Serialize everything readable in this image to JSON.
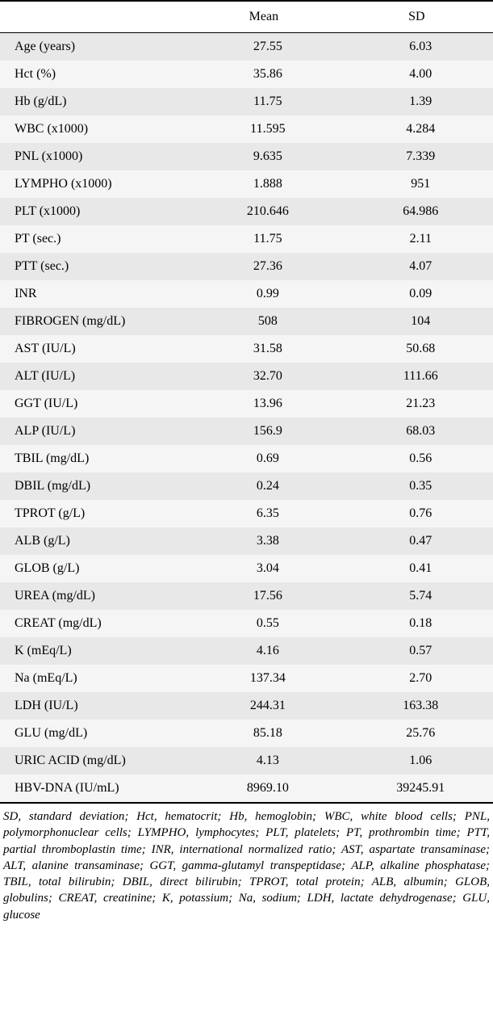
{
  "table": {
    "columns": [
      "",
      "Mean",
      "SD"
    ],
    "rows": [
      {
        "label": "Age (years)",
        "mean": "27.55",
        "sd": "6.03"
      },
      {
        "label": "Hct (%)",
        "mean": "35.86",
        "sd": "4.00"
      },
      {
        "label": "Hb (g/dL)",
        "mean": "11.75",
        "sd": "1.39"
      },
      {
        "label": "WBC (x1000)",
        "mean": "11.595",
        "sd": "4.284"
      },
      {
        "label": "PNL (x1000)",
        "mean": "9.635",
        "sd": "7.339"
      },
      {
        "label": "LYMPHO (x1000)",
        "mean": "1.888",
        "sd": "951"
      },
      {
        "label": "PLT (x1000)",
        "mean": "210.646",
        "sd": "64.986"
      },
      {
        "label": "PT (sec.)",
        "mean": "11.75",
        "sd": "2.11"
      },
      {
        "label": "PTT (sec.)",
        "mean": "27.36",
        "sd": "4.07"
      },
      {
        "label": "INR",
        "mean": "0.99",
        "sd": "0.09"
      },
      {
        "label": "FIBROGEN (mg/dL)",
        "mean": "508",
        "sd": "104"
      },
      {
        "label": "AST (IU/L)",
        "mean": "31.58",
        "sd": "50.68"
      },
      {
        "label": "ALT (IU/L)",
        "mean": "32.70",
        "sd": "111.66"
      },
      {
        "label": "GGT (IU/L)",
        "mean": "13.96",
        "sd": "21.23"
      },
      {
        "label": "ALP (IU/L)",
        "mean": "156.9",
        "sd": "68.03"
      },
      {
        "label": "TBIL (mg/dL)",
        "mean": "0.69",
        "sd": "0.56"
      },
      {
        "label": "DBIL (mg/dL)",
        "mean": "0.24",
        "sd": "0.35"
      },
      {
        "label": "TPROT (g/L)",
        "mean": "6.35",
        "sd": "0.76"
      },
      {
        "label": "ALB (g/L)",
        "mean": "3.38",
        "sd": "0.47"
      },
      {
        "label": "GLOB (g/L)",
        "mean": "3.04",
        "sd": "0.41"
      },
      {
        "label": "UREA (mg/dL)",
        "mean": "17.56",
        "sd": "5.74"
      },
      {
        "label": "CREAT (mg/dL)",
        "mean": "0.55",
        "sd": "0.18"
      },
      {
        "label": "K (mEq/L)",
        "mean": "4.16",
        "sd": "0.57"
      },
      {
        "label": "Na (mEq/L)",
        "mean": "137.34",
        "sd": "2.70"
      },
      {
        "label": "LDH (IU/L)",
        "mean": "244.31",
        "sd": "163.38"
      },
      {
        "label": "GLU (mg/dL)",
        "mean": "85.18",
        "sd": "25.76"
      },
      {
        "label": "URIC ACID (mg/dL)",
        "mean": "4.13",
        "sd": "1.06"
      },
      {
        "label": "HBV-DNA (IU/mL)",
        "mean": "8969.10",
        "sd": "39245.91"
      }
    ],
    "row_bg_even": "#e8e8e8",
    "row_bg_odd": "#f5f5f5",
    "header_bg": "#ffffff",
    "border_color": "#000000",
    "font_size": 16
  },
  "footnote": "SD, standard deviation; Hct, hematocrit; Hb, hemoglobin; WBC, white blood cells; PNL, polymorphonuclear cells; LYMPHO, lymphocytes; PLT, platelets; PT, prothrombin time; PTT, partial thromboplastin time; INR, international normalized ratio; AST, aspartate transaminase; ALT, alanine transaminase; GGT, gamma-glutamyl transpeptidase; ALP, alkaline phosphatase; TBIL, total bilirubin; DBIL, direct bilirubin; TPROT, total protein; ALB, albumin; GLOB, globulins; CREAT, creatinine; K, potassium; Na, sodium; LDH, lactate dehydrogenase; GLU, glucose"
}
